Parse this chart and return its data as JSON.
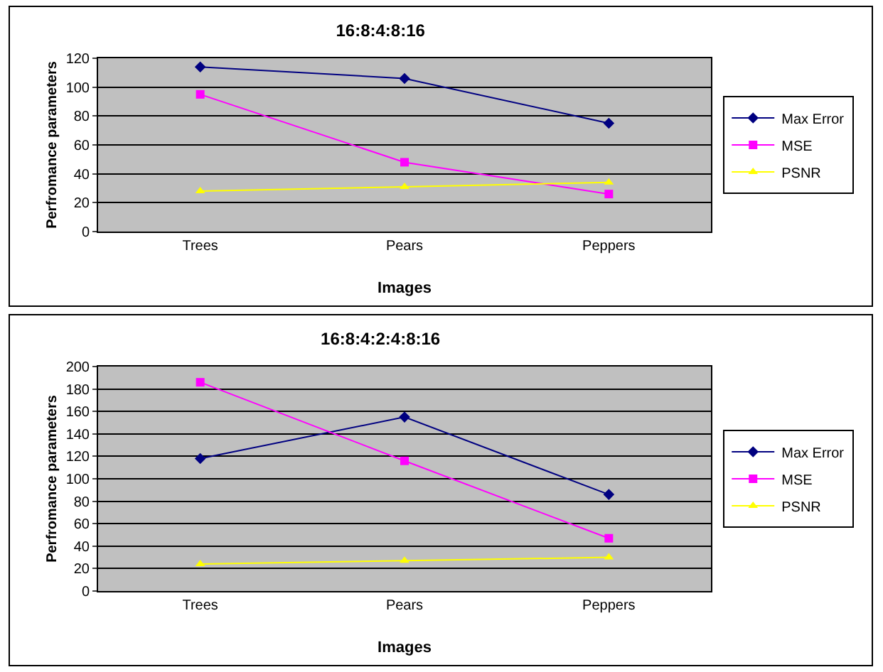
{
  "chart_data": [
    {
      "type": "line",
      "title": "16:8:4:8:16",
      "xlabel": "Images",
      "ylabel": "Perfromance parameters",
      "categories": [
        "Trees",
        "Pears",
        "Peppers"
      ],
      "series": [
        {
          "name": "Max Error",
          "color": "#000080",
          "marker": "diamond",
          "values": [
            114,
            106,
            75
          ]
        },
        {
          "name": "MSE",
          "color": "#ff00ff",
          "marker": "square",
          "values": [
            95,
            48,
            26
          ]
        },
        {
          "name": "PSNR",
          "color": "#ffff00",
          "marker": "triangle",
          "values": [
            28,
            31,
            34
          ]
        }
      ],
      "ylim": [
        0,
        120
      ],
      "yticks": [
        0,
        20,
        40,
        60,
        80,
        100,
        120
      ],
      "grid": "y",
      "legend": "right"
    },
    {
      "type": "line",
      "title": "16:8:4:2:4:8:16",
      "xlabel": "Images",
      "ylabel": "Perfromance parameters",
      "categories": [
        "Trees",
        "Pears",
        "Peppers"
      ],
      "series": [
        {
          "name": "Max Error",
          "color": "#000080",
          "marker": "diamond",
          "values": [
            118,
            155,
            86
          ]
        },
        {
          "name": "MSE",
          "color": "#ff00ff",
          "marker": "square",
          "values": [
            186,
            116,
            47
          ]
        },
        {
          "name": "PSNR",
          "color": "#ffff00",
          "marker": "triangle",
          "values": [
            24,
            27,
            30
          ]
        }
      ],
      "ylim": [
        0,
        200
      ],
      "yticks": [
        0,
        20,
        40,
        60,
        80,
        100,
        120,
        140,
        160,
        180,
        200
      ],
      "grid": "y",
      "legend": "right"
    }
  ]
}
